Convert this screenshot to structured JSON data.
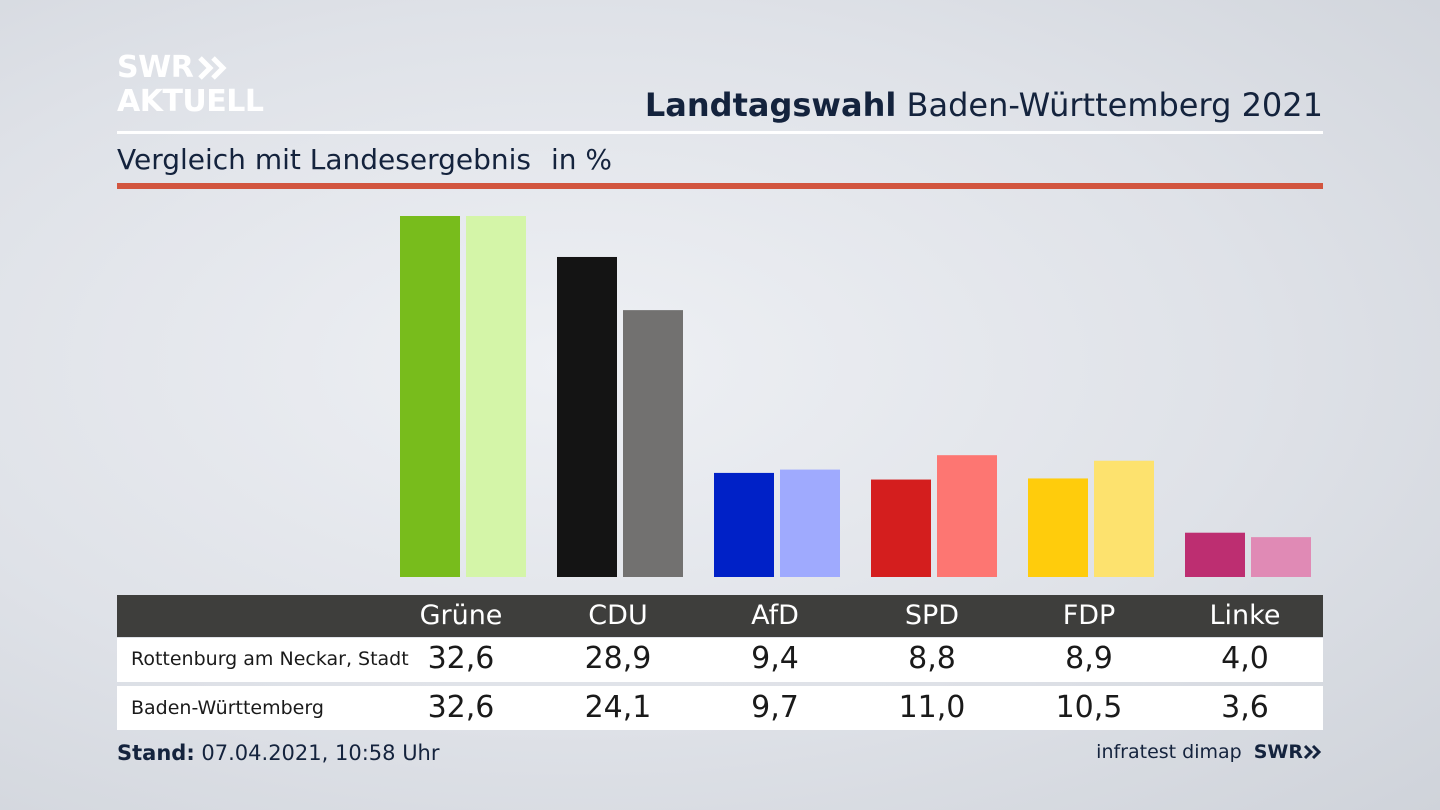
{
  "brand": {
    "line1": "SWR",
    "line2": "AKTUELL",
    "arrows_icon": "double-chevron-right-icon"
  },
  "header": {
    "title_bold": "Landtagswahl",
    "title_rest": "Baden-Württemberg 2021"
  },
  "sub": {
    "subtitle": "Vergleich mit Landesergebnis",
    "unit": "in %"
  },
  "colors": {
    "accent_rule": "#d2553f",
    "table_header": "#3e3e3c",
    "Grüne": [
      "#78bc1c",
      "#d4f5a8"
    ],
    "CDU": [
      "#141414",
      "#727170"
    ],
    "AfD": [
      "#0021c7",
      "#9faafe"
    ],
    "SPD": [
      "#d41e1e",
      "#fd7672"
    ],
    "FDP": [
      "#ffcc0c",
      "#fde26e"
    ],
    "Linke": [
      "#bd2e71",
      "#e08ab5"
    ]
  },
  "chart_data": {
    "type": "bar",
    "title": "Landtagswahl Baden-Württemberg 2021",
    "subtitle": "Vergleich mit Landesergebnis",
    "unit": "in %",
    "categories": [
      "Grüne",
      "CDU",
      "AfD",
      "SPD",
      "FDP",
      "Linke"
    ],
    "series": [
      {
        "name": "Rottenburg am Neckar, Stadt",
        "values": [
          32.6,
          28.9,
          9.4,
          8.8,
          8.9,
          4.0
        ]
      },
      {
        "name": "Baden-Württemberg",
        "values": [
          32.6,
          24.1,
          9.7,
          11.0,
          10.5,
          3.6
        ]
      }
    ],
    "ylim": [
      0,
      32.6
    ],
    "grid": false
  },
  "table": {
    "headers": [
      "Grüne",
      "CDU",
      "AfD",
      "SPD",
      "FDP",
      "Linke"
    ],
    "rows": [
      {
        "label": "Rottenburg am Neckar, Stadt",
        "values": [
          "32,6",
          "28,9",
          "9,4",
          "8,8",
          "8,9",
          "4,0"
        ]
      },
      {
        "label": "Baden-Württemberg",
        "values": [
          "32,6",
          "24,1",
          "9,7",
          "11,0",
          "10,5",
          "3,6"
        ]
      }
    ]
  },
  "footer": {
    "stand_label": "Stand:",
    "stand_value": "07.04.2021, 10:58 Uhr",
    "source": "infratest dimap",
    "source_brand": "SWR"
  }
}
